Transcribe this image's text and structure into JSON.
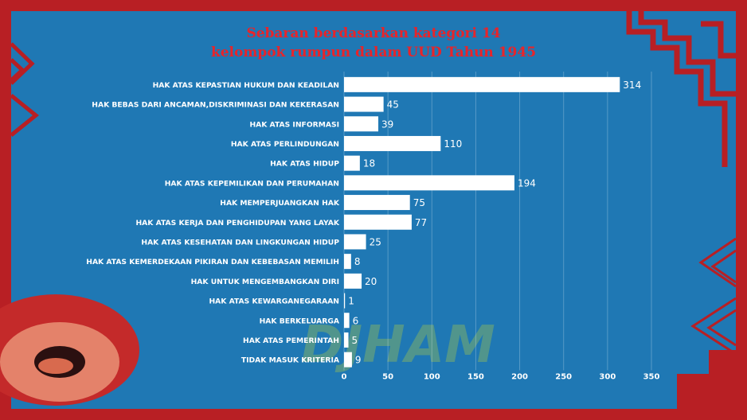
{
  "chart_data": {
    "type": "bar",
    "orientation": "horizontal",
    "title": "Sebaran berdasarkan kategori 14",
    "subtitle": "kelompok rumpun dalam UUD Tahun 1945",
    "categories": [
      "HAK ATAS KEPASTIAN HUKUM DAN KEADILAN",
      "HAK BEBAS DARI ANCAMAN,DISKRIMINASI DAN KEKERASAN",
      "HAK ATAS INFORMASI",
      "HAK ATAS PERLINDUNGAN",
      "HAK ATAS HIDUP",
      "HAK ATAS KEPEMILIKAN DAN PERUMAHAN",
      "HAK MEMPERJUANGKAN HAK",
      "HAK ATAS KERJA DAN PENGHIDUPAN YANG LAYAK",
      "HAK ATAS KESEHATAN DAN LINGKUNGAN HIDUP",
      "HAK ATAS KEMERDEKAAN PIKIRAN DAN KEBEBASAN MEMILIH",
      "HAK UNTUK MENGEMBANGKAN DIRI",
      "HAK ATAS KEWARGANEGARAAN",
      "HAK BERKELUARGA",
      "HAK ATAS PEMERINTAH",
      "TIDAK MASUK KRITERIA"
    ],
    "values": [
      314,
      45,
      39,
      110,
      18,
      194,
      75,
      77,
      25,
      8,
      20,
      1,
      6,
      5,
      9
    ],
    "xlim": [
      0,
      350
    ],
    "xticks": [
      0,
      50,
      100,
      150,
      200,
      250,
      300,
      350
    ],
    "grid": true,
    "bar_color": "#ffffff"
  },
  "watermark": "DJHAM",
  "colors": {
    "background": "#1f78b4",
    "border": "#b81f24",
    "title": "#e8242a",
    "text": "#ffffff",
    "watermark": "#8fb85a"
  }
}
